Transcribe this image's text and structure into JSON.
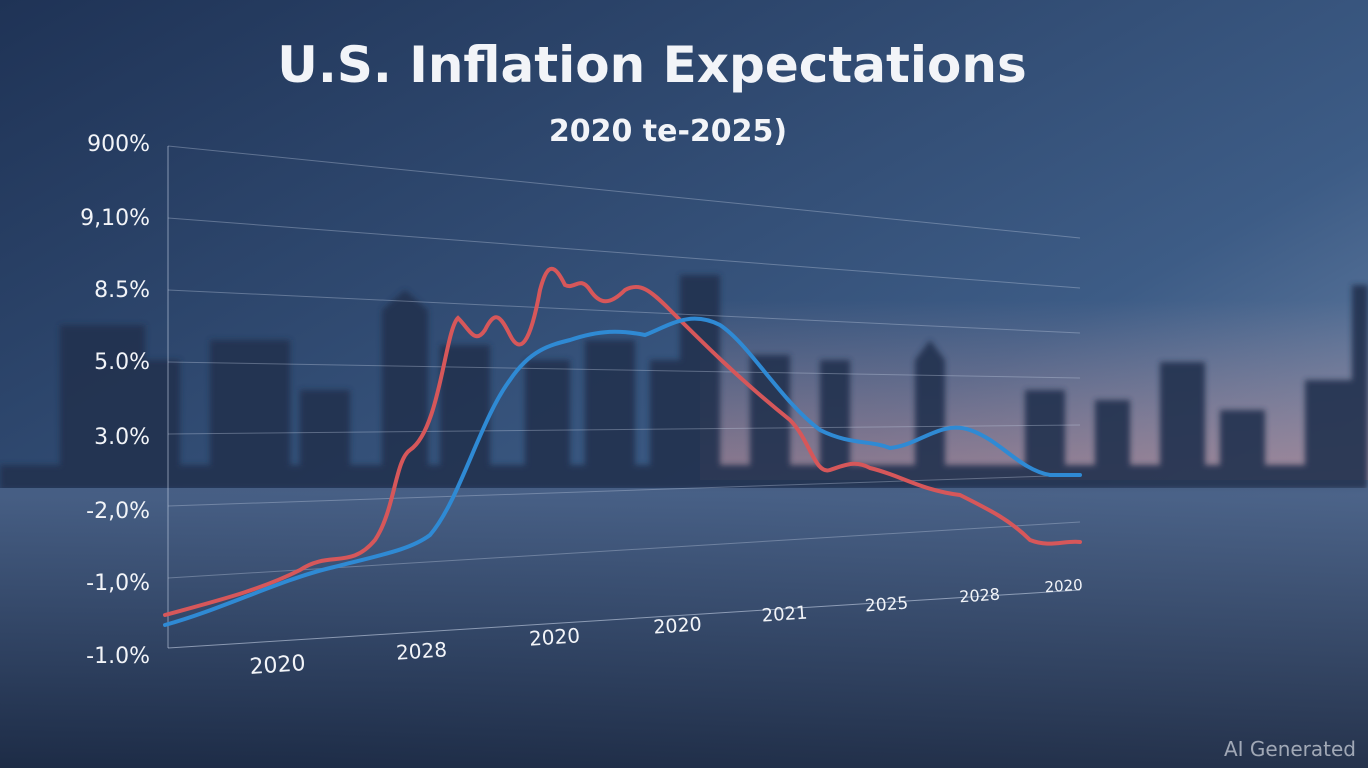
{
  "title": "U.S. Inflation Expectations",
  "subtitle": "2020 te-2025)",
  "y_axis_labels": [
    "900%",
    "9,10%",
    "8.5%",
    "5.0%",
    "3.0%",
    "-2,0%",
    "-1,0%",
    "-1.0%"
  ],
  "x_axis_labels": [
    "2020",
    "2028",
    "2020",
    "2020",
    "2021",
    "2025",
    "2028",
    "2020"
  ],
  "watermark": "AI Generated"
}
